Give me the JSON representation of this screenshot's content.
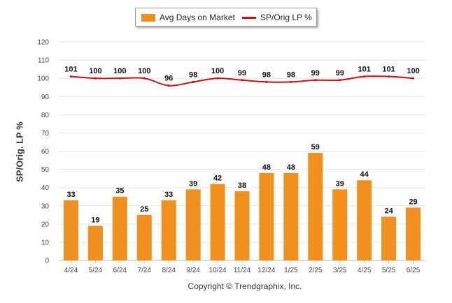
{
  "chart_data": {
    "type": "bar",
    "categories": [
      "4/24",
      "5/24",
      "6/24",
      "7/24",
      "8/24",
      "9/24",
      "10/24",
      "11/24",
      "12/24",
      "1/25",
      "2/25",
      "3/25",
      "4/25",
      "5/25",
      "6/25"
    ],
    "series": [
      {
        "name": "Avg Days on Market",
        "type": "bar",
        "color": "#f0901e",
        "values": [
          33,
          19,
          35,
          25,
          33,
          39,
          42,
          38,
          48,
          48,
          59,
          39,
          44,
          24,
          29
        ]
      },
      {
        "name": "SP/Orig LP %",
        "type": "line",
        "color": "#cc1111",
        "values": [
          101,
          100,
          100,
          100,
          96,
          98,
          100,
          99,
          98,
          98,
          99,
          99,
          101,
          101,
          100
        ]
      }
    ],
    "ylabel": "SP/Orig. LP %",
    "ylim": [
      0,
      120
    ],
    "yticks": [
      0,
      10,
      20,
      30,
      40,
      50,
      60,
      70,
      80,
      90,
      100,
      110,
      120
    ],
    "grid": true,
    "legend_position": "top-center"
  },
  "legend": {
    "bar_label": "Avg Days on Market",
    "line_label": "SP/Orig LP %"
  },
  "footer": "Copyright © Trendgraphix, Inc."
}
